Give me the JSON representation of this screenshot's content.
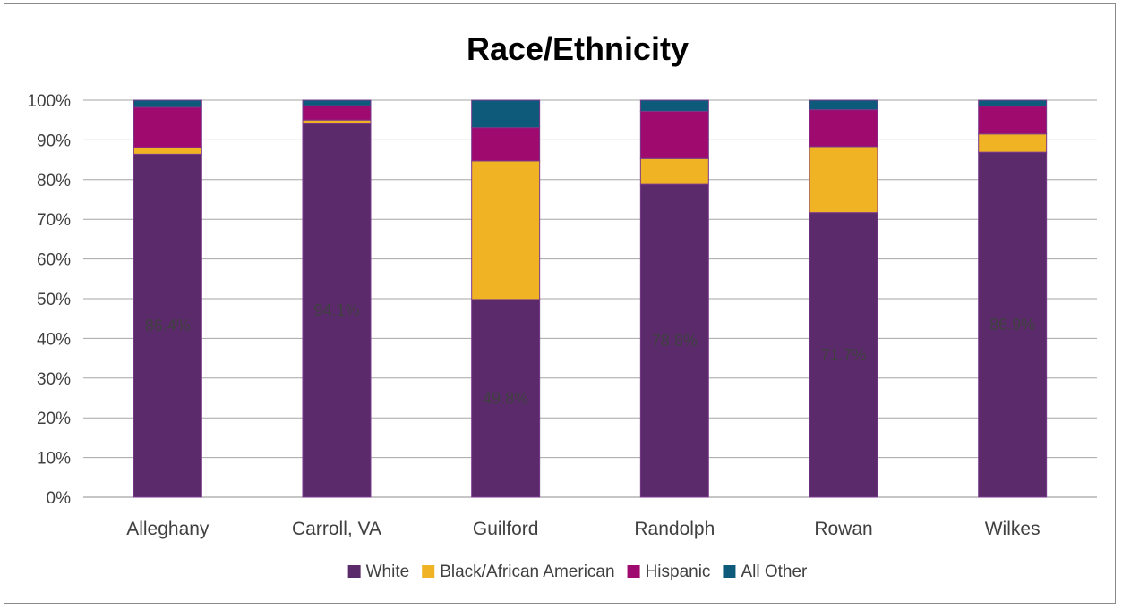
{
  "chart_data": {
    "type": "bar",
    "stacked": true,
    "title": "Race/Ethnicity",
    "xlabel": "",
    "ylabel": "",
    "ylim": [
      0,
      100
    ],
    "y_ticks": [
      "0%",
      "10%",
      "20%",
      "30%",
      "40%",
      "50%",
      "60%",
      "70%",
      "80%",
      "90%",
      "100%"
    ],
    "y_tick_values": [
      0,
      10,
      20,
      30,
      40,
      50,
      60,
      70,
      80,
      90,
      100
    ],
    "grid": true,
    "legend_position": "bottom",
    "categories": [
      "Alleghany",
      "Carroll, VA",
      "Guilford",
      "Randolph",
      "Rowan",
      "Wilkes"
    ],
    "series": [
      {
        "name": "White",
        "color": "#5b2a6b",
        "values": [
          86.4,
          94.1,
          49.8,
          78.8,
          71.7,
          86.9
        ],
        "labels": [
          "86.4%",
          "94.1%",
          "49.8%",
          "78.8%",
          "71.7%",
          "86.9%"
        ]
      },
      {
        "name": "Black/African American",
        "color": "#f0b323",
        "values": [
          1.7,
          0.9,
          34.9,
          6.5,
          16.6,
          4.6
        ]
      },
      {
        "name": "Hispanic",
        "color": "#9e0a6e",
        "values": [
          10.1,
          3.6,
          8.4,
          11.9,
          9.3,
          7.0
        ]
      },
      {
        "name": "All Other",
        "color": "#0e5a7a",
        "values": [
          1.8,
          1.4,
          6.9,
          2.8,
          2.4,
          1.5
        ]
      }
    ]
  }
}
